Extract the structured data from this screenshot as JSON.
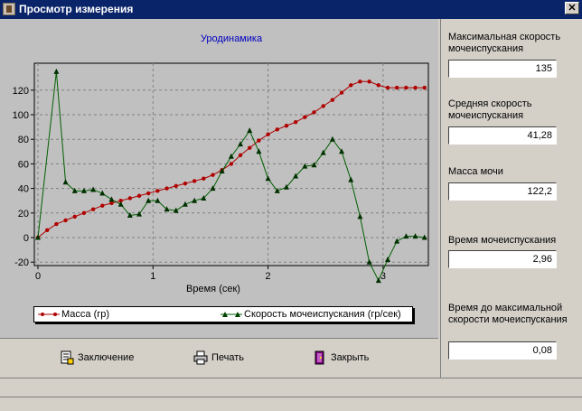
{
  "window": {
    "title": "Просмотр измерения"
  },
  "chart_data": {
    "type": "line",
    "title": "Уродинамика",
    "xlabel": "Время (сек)",
    "ylabel": "",
    "xlim": [
      0,
      3.4
    ],
    "ylim": [
      -33,
      135
    ],
    "x_ticks": [
      0,
      1,
      2,
      3
    ],
    "y_ticks": [
      -20,
      0,
      20,
      40,
      60,
      80,
      100,
      120
    ],
    "grid": true,
    "legend_position": "bottom",
    "series": [
      {
        "name": "Масса (гр)",
        "color": "#b00000",
        "marker": "circle",
        "x": [
          0,
          0.08,
          0.16,
          0.24,
          0.32,
          0.4,
          0.48,
          0.56,
          0.64,
          0.72,
          0.8,
          0.88,
          0.96,
          1.04,
          1.12,
          1.2,
          1.28,
          1.36,
          1.44,
          1.52,
          1.6,
          1.68,
          1.76,
          1.84,
          1.92,
          2.0,
          2.08,
          2.16,
          2.24,
          2.32,
          2.4,
          2.48,
          2.56,
          2.64,
          2.72,
          2.8,
          2.88,
          2.96,
          3.04,
          3.12,
          3.2,
          3.28,
          3.36
        ],
        "values": [
          0,
          6,
          11,
          14,
          17,
          20,
          23,
          26,
          28,
          30,
          32,
          34,
          36,
          38,
          40,
          42,
          44,
          46,
          48,
          51,
          55,
          60,
          67,
          73,
          79,
          84,
          88,
          91,
          94,
          98,
          102,
          107,
          112,
          118,
          124,
          127,
          127,
          124,
          122,
          122,
          122,
          122,
          122
        ]
      },
      {
        "name": "Скорость мочеиспускания (гр/сек)",
        "color": "#006000",
        "marker": "triangle",
        "x": [
          0,
          0.16,
          0.24,
          0.32,
          0.4,
          0.48,
          0.56,
          0.64,
          0.72,
          0.8,
          0.88,
          0.96,
          1.04,
          1.12,
          1.2,
          1.28,
          1.36,
          1.44,
          1.52,
          1.6,
          1.68,
          1.76,
          1.84,
          1.92,
          2.0,
          2.08,
          2.16,
          2.24,
          2.32,
          2.4,
          2.48,
          2.56,
          2.64,
          2.72,
          2.8,
          2.88,
          2.96,
          3.04,
          3.12,
          3.2,
          3.28,
          3.36
        ],
        "values": [
          0,
          135,
          45,
          38,
          38,
          39,
          36,
          31,
          27,
          18,
          19,
          30,
          30,
          23,
          22,
          27,
          30,
          32,
          40,
          54,
          66,
          76,
          87,
          70,
          48,
          38,
          41,
          50,
          58,
          59,
          69,
          80,
          70,
          47,
          17,
          -20,
          -35,
          -18,
          -3,
          1,
          1,
          0
        ]
      }
    ]
  },
  "buttons": {
    "conclusion": "Заключение",
    "print": "Печать",
    "close": "Закрыть"
  },
  "stats": [
    {
      "label": "Максимальная скорость мочеиспускания",
      "value": "135"
    },
    {
      "label": "Средняя скорость мочеиспускания",
      "value": "41,28"
    },
    {
      "label": "Масса мочи",
      "value": "122,2"
    },
    {
      "label": "Время мочеиспускания",
      "value": "2,96"
    },
    {
      "label": "Время до максимальной скорости мочеиспускания",
      "value": "0,08"
    }
  ]
}
